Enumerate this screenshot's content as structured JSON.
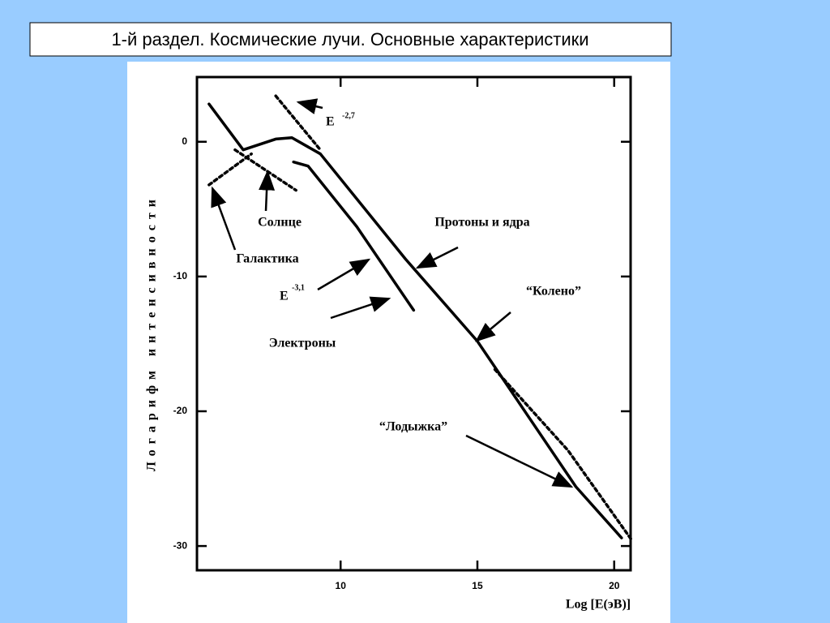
{
  "header": {
    "title": "1-й раздел. Космические лучи. Основные характеристики"
  },
  "chart_data": {
    "type": "line",
    "x_label": "Log [E(эВ)]",
    "y_label": "Логарифм интенсивности",
    "xlim": [
      4.75,
      20.6
    ],
    "ylim": [
      -31.8,
      4.8
    ],
    "xticks": [
      10,
      15,
      20
    ],
    "yticks": [
      0,
      -10,
      -20,
      -30
    ],
    "series": [
      {
        "color": "#000000",
        "style": "solid",
        "x": [
          5.19,
          6.44,
          7.63,
          8.22,
          9.26,
          12.37,
          15,
          16.8,
          18.6,
          20.27
        ],
        "values": [
          2.8,
          -0.6,
          0.2,
          0.3,
          -0.9,
          -8.7,
          -14.8,
          -20.2,
          -25.6,
          -29.4
        ]
      },
      {
        "color": "#000000",
        "style": "solid",
        "x": [
          8.28,
          8.81,
          10.59,
          12.67
        ],
        "values": [
          -1.5,
          -1.8,
          -6.3,
          -12.5
        ]
      },
      {
        "color": "#000000",
        "style": "dashed",
        "x": [
          7.63,
          9.26
        ],
        "values": [
          3.4,
          -0.6
        ]
      },
      {
        "color": "#000000",
        "style": "dashed",
        "x": [
          15.64,
          18.31,
          20.62
        ],
        "values": [
          -16.9,
          -22.9,
          -29.5
        ]
      },
      {
        "color": "#000000",
        "style": "dashed",
        "x": [
          5.19,
          6.74
        ],
        "values": [
          -3.2,
          -0.9
        ]
      },
      {
        "color": "#000000",
        "style": "dashed",
        "x": [
          6.14,
          8.37
        ],
        "values": [
          -0.6,
          -3.6
        ]
      }
    ],
    "annotations": [
      "E",
      "-2,7",
      "Солнце",
      "Галактика",
      "E",
      "-3,1",
      "Электроны",
      "Протоны и ядра",
      "“Колено”",
      "“Лодыжка”"
    ]
  }
}
